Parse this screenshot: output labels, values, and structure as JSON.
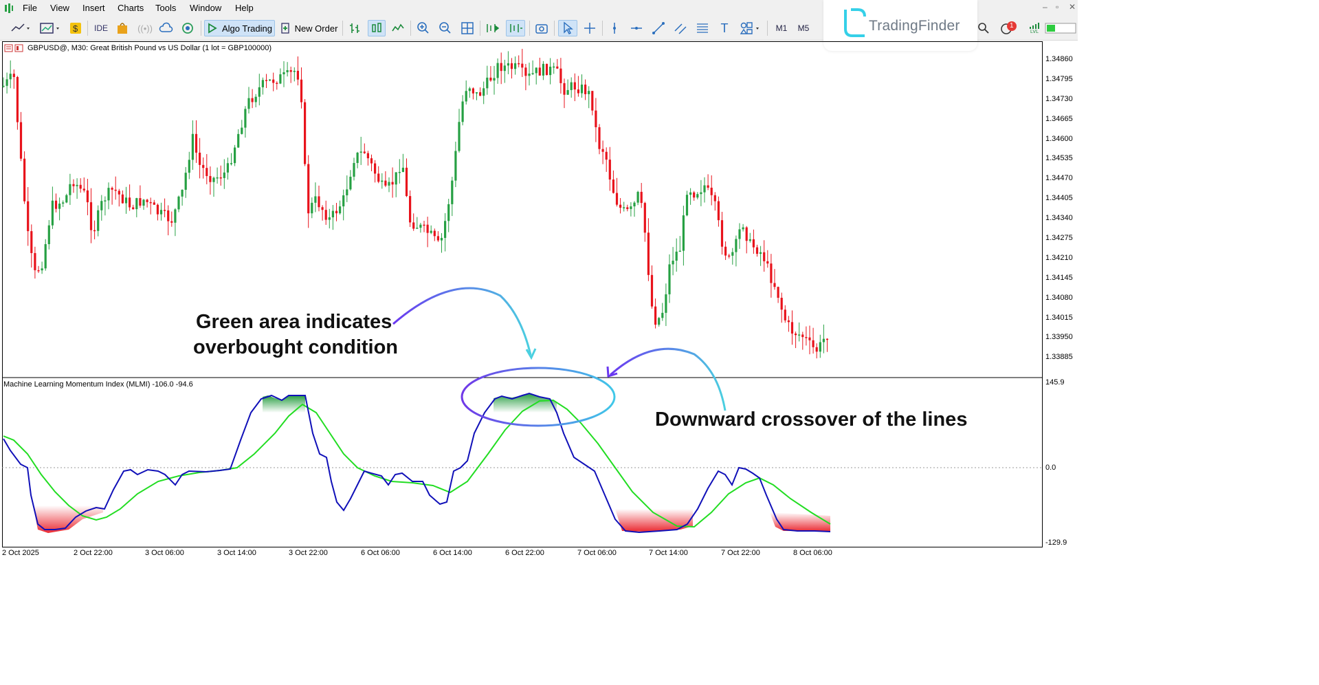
{
  "menu": [
    "File",
    "View",
    "Insert",
    "Charts",
    "Tools",
    "Window",
    "Help"
  ],
  "toolbar": {
    "ide_label": "IDE",
    "algo_trading_label": "Algo Trading",
    "new_order_label": "New Order",
    "timeframes": [
      "M1",
      "M5"
    ],
    "notification_count": "1",
    "lvl_label": "LVL"
  },
  "brand": {
    "name": "TradingFinder"
  },
  "chart": {
    "caption": "GBPUSD@, M30:  Great British Pound vs US Dollar (1 lot = GBP100000)",
    "price_labels": [
      "1.34860",
      "1.34795",
      "1.34730",
      "1.34665",
      "1.34600",
      "1.34535",
      "1.34470",
      "1.34405",
      "1.34340",
      "1.34275",
      "1.34210",
      "1.34145",
      "1.34080",
      "1.34015",
      "1.33950",
      "1.33885"
    ],
    "time_labels": [
      "2 Oct 2025",
      "2 Oct 22:00",
      "3 Oct 06:00",
      "3 Oct 14:00",
      "3 Oct 22:00",
      "6 Oct 06:00",
      "6 Oct 14:00",
      "6 Oct 22:00",
      "7 Oct 06:00",
      "7 Oct 14:00",
      "7 Oct 22:00",
      "8 Oct 06:00"
    ],
    "colors": {
      "bull": "#26a043",
      "bear": "#e8121b",
      "fast_line": "#1010b8",
      "slow_line": "#22dd22"
    }
  },
  "indicator": {
    "title": "Machine Learning Momentum Index (MLMI) -106.0 -94.6",
    "scale_labels": [
      "145.9",
      "0.0",
      "-129.9"
    ]
  },
  "annotations": {
    "overbought_line1": "Green area indicates",
    "overbought_line2": "overbought condition",
    "crossover": "Downward crossover of the lines"
  }
}
